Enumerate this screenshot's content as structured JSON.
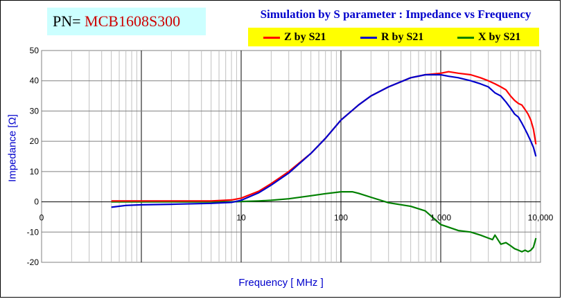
{
  "pn": {
    "prefix": "PN= ",
    "value": "MCB1608S300"
  },
  "chart_data": {
    "type": "line",
    "title": "Simulation by S parameter : Impedance vs Frequency",
    "xlabel": "Frequency [ MHz ]",
    "ylabel": "Impedance [Ω]",
    "xscale": "log",
    "xlim": [
      0.1,
      10000
    ],
    "ylim": [
      -20,
      50
    ],
    "xtick_values": [
      0.1,
      10,
      100,
      1000,
      10000
    ],
    "xtick_labels": [
      "0",
      "10",
      "100",
      "1,000",
      "10,000"
    ],
    "yticks": [
      -20,
      -10,
      0,
      10,
      20,
      30,
      40,
      50
    ],
    "grid": true,
    "legend_position": "top-right",
    "colors": {
      "Z": "#ff0000",
      "R": "#0000cc",
      "X": "#008000"
    },
    "series": [
      {
        "name": "Z by S21",
        "key": "Z",
        "x": [
          0.5,
          1,
          2,
          5,
          8,
          10,
          15,
          20,
          30,
          50,
          70,
          100,
          150,
          200,
          300,
          500,
          700,
          1000,
          1200,
          1500,
          2000,
          2500,
          3000,
          3500,
          4000,
          4500,
          5000,
          5500,
          6000,
          6500,
          7000,
          7500,
          8000,
          8500,
          9000
        ],
        "values": [
          0.3,
          0.3,
          0.3,
          0.3,
          0.6,
          1.2,
          3.5,
          6,
          10,
          16,
          21,
          27,
          32,
          35,
          38,
          41,
          42,
          42.5,
          43,
          42.5,
          42,
          41,
          40,
          39,
          38,
          37,
          35,
          33.5,
          32.5,
          32,
          30.5,
          29,
          27,
          24,
          19
        ]
      },
      {
        "name": "R by S21",
        "key": "R",
        "x": [
          0.5,
          0.7,
          1,
          2,
          5,
          8,
          10,
          15,
          20,
          30,
          50,
          70,
          100,
          150,
          200,
          300,
          500,
          700,
          1000,
          1200,
          1500,
          2000,
          2500,
          3000,
          3500,
          4000,
          4500,
          5000,
          5500,
          6000,
          6500,
          7000,
          7500,
          8000,
          8500,
          9000
        ],
        "values": [
          -1.8,
          -1.2,
          -1,
          -0.8,
          -0.5,
          -0.2,
          0.5,
          3,
          5.5,
          9.5,
          16,
          21,
          27,
          32,
          35,
          38,
          41,
          42,
          42,
          41.5,
          41,
          40,
          39,
          38,
          36,
          35,
          33,
          31,
          29,
          28,
          26,
          24,
          22,
          20,
          18,
          15
        ]
      },
      {
        "name": "X by S21",
        "key": "X",
        "x": [
          0.5,
          1,
          2,
          5,
          8,
          10,
          15,
          20,
          30,
          50,
          70,
          100,
          130,
          150,
          200,
          300,
          500,
          700,
          1000,
          1500,
          2000,
          2500,
          3000,
          3300,
          3500,
          4000,
          4500,
          5000,
          5500,
          6000,
          6500,
          7000,
          7500,
          8000,
          8500,
          9000
        ],
        "values": [
          0,
          0,
          0,
          0,
          0,
          0.1,
          0.3,
          0.5,
          1,
          2,
          2.7,
          3.3,
          3.3,
          2.8,
          1.5,
          -0.3,
          -1.5,
          -3,
          -7.5,
          -9.5,
          -10,
          -11,
          -12,
          -12.5,
          -11,
          -14,
          -13.5,
          -14.5,
          -15.5,
          -16,
          -16.5,
          -16,
          -16.5,
          -16,
          -15,
          -12
        ]
      }
    ]
  }
}
